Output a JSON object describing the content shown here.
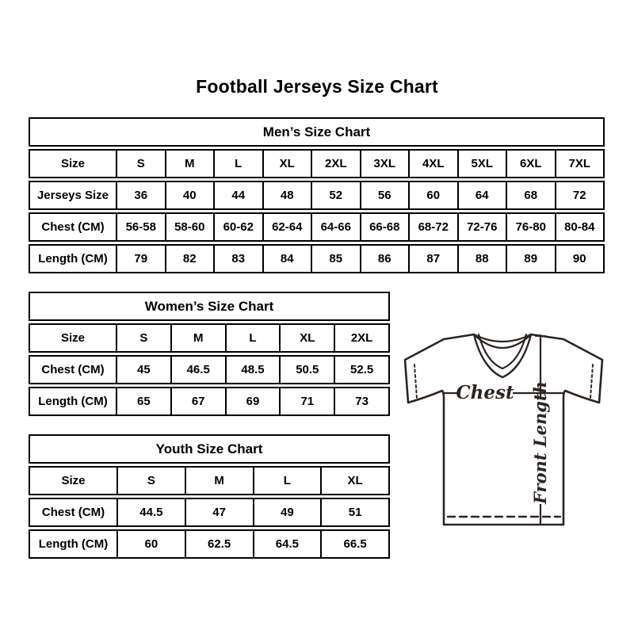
{
  "page_title": "Football Jerseys Size Chart",
  "tables": {
    "mens": {
      "title": "Men’s Size Chart",
      "rows": [
        [
          "Size",
          "S",
          "M",
          "L",
          "XL",
          "2XL",
          "3XL",
          "4XL",
          "5XL",
          "6XL",
          "7XL"
        ],
        [
          "Jerseys Size",
          "36",
          "40",
          "44",
          "48",
          "52",
          "56",
          "60",
          "64",
          "68",
          "72"
        ],
        [
          "Chest (CM)",
          "56-58",
          "58-60",
          "60-62",
          "62-64",
          "64-66",
          "66-68",
          "68-72",
          "72-76",
          "76-80",
          "80-84"
        ],
        [
          "Length (CM)",
          "79",
          "82",
          "83",
          "84",
          "85",
          "86",
          "87",
          "88",
          "89",
          "90"
        ]
      ]
    },
    "womens": {
      "title": "Women’s Size Chart",
      "rows": [
        [
          "Size",
          "S",
          "M",
          "L",
          "XL",
          "2XL"
        ],
        [
          "Chest (CM)",
          "45",
          "46.5",
          "48.5",
          "50.5",
          "52.5"
        ],
        [
          "Length (CM)",
          "65",
          "67",
          "69",
          "71",
          "73"
        ]
      ]
    },
    "youth": {
      "title": "Youth Size Chart",
      "rows": [
        [
          "Size",
          "S",
          "M",
          "L",
          "XL"
        ],
        [
          "Chest (CM)",
          "44.5",
          "47",
          "49",
          "51"
        ],
        [
          "Length (CM)",
          "60",
          "62.5",
          "64.5",
          "66.5"
        ]
      ]
    }
  },
  "diagram": {
    "chest_label": "Chest",
    "front_length_label": "Front Length"
  },
  "colors": {
    "header_bg": "#d9d9d9",
    "table_border": "#000000",
    "diagram_line": "#2b2522",
    "background": "#ffffff"
  }
}
